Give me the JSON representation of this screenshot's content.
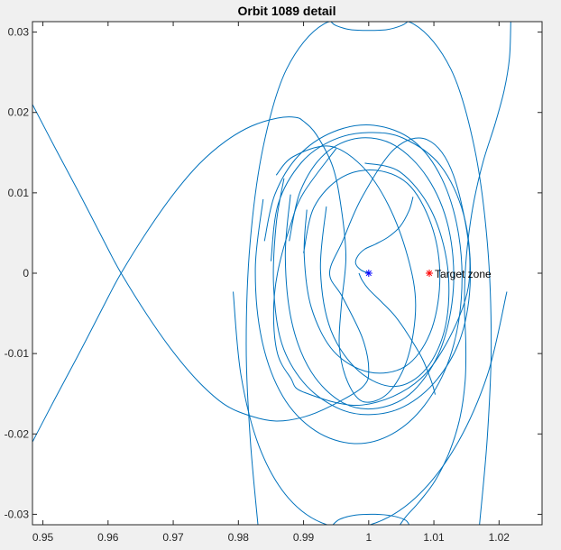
{
  "chart_data": {
    "type": "line",
    "title": "Orbit 1089 detail",
    "xlabel": "",
    "ylabel": "",
    "xlim": [
      0.9484,
      1.0266
    ],
    "ylim": [
      -0.0313,
      0.0313
    ],
    "xticks": [
      0.95,
      0.96,
      0.97,
      0.98,
      0.99,
      1,
      1.01,
      1.02
    ],
    "xtick_labels": [
      "0.95",
      "0.96",
      "0.97",
      "0.98",
      "0.99",
      "1",
      "1.01",
      "1.02"
    ],
    "yticks": [
      -0.03,
      -0.02,
      -0.01,
      0,
      0.01,
      0.02,
      0.03
    ],
    "ytick_labels": [
      "-0.03",
      "-0.02",
      "-0.01",
      "0",
      "0.01",
      "0.02",
      "0.03"
    ],
    "grid": false,
    "line_color": "#0072bd",
    "series": [
      {
        "x": [
          0.9484,
          0.952,
          0.956,
          0.96,
          0.962,
          0.966,
          0.97,
          0.974,
          0.978,
          0.982,
          0.9858,
          0.99,
          0.994,
          0.999,
          1.0,
          0.999,
          0.996,
          0.994,
          0.996,
          0.999,
          1.004,
          1.009,
          1.013,
          1.0155,
          1.014,
          1.008,
          0.999,
          0.99,
          0.988,
          0.986,
          0.9854,
          0.986,
          0.988,
          0.99,
          0.995
        ],
        "y": [
          0.021,
          0.0154,
          0.0093,
          0.003,
          0.0,
          -0.0052,
          -0.0098,
          -0.0136,
          -0.0164,
          -0.0178,
          -0.0184,
          -0.0179,
          -0.0166,
          -0.0142,
          -0.012,
          -0.008,
          -0.003,
          0.0,
          0.004,
          0.0095,
          0.0155,
          0.0166,
          0.0122,
          0.002,
          -0.0052,
          -0.0131,
          -0.0164,
          -0.0148,
          -0.013,
          -0.01,
          -0.005,
          0.0,
          0.006,
          0.01,
          0.0155
        ]
      },
      {
        "x": [
          0.9484,
          0.952,
          0.956,
          0.96,
          0.962,
          0.966,
          0.97,
          0.974,
          0.978,
          0.982,
          0.986,
          0.9887,
          0.99,
          0.992,
          0.9945,
          0.9958,
          0.9965,
          0.9958,
          0.9955,
          0.9968,
          0.9992,
          1.003,
          1.006,
          1.0072,
          1.006,
          1.003,
          0.999,
          0.994,
          0.9884,
          0.9858
        ],
        "y": [
          -0.021,
          -0.0154,
          -0.0093,
          -0.003,
          0.0,
          0.0052,
          0.0098,
          0.0136,
          0.0164,
          0.0183,
          0.0193,
          0.0194,
          0.0189,
          0.0172,
          0.0132,
          0.008,
          0.002,
          -0.004,
          -0.0092,
          -0.0136,
          -0.016,
          -0.0149,
          -0.0105,
          -0.004,
          0.002,
          0.0085,
          0.0133,
          0.0158,
          0.0145,
          0.0122
        ]
      },
      {
        "x": [
          1.0,
          0.9988,
          0.998,
          0.9983,
          0.9994,
          1.001,
          1.003,
          1.0048,
          1.0062,
          1.0068
        ],
        "y": [
          0.0,
          0.0004,
          0.0012,
          0.0021,
          0.003,
          0.0036,
          0.0045,
          0.0058,
          0.0078,
          0.0095
        ]
      },
      {
        "x": [
          0.9985,
          0.999,
          1.0,
          1.002,
          1.004,
          1.006,
          1.0082,
          1.0096,
          1.0102
        ],
        "y": [
          0.0,
          -0.0009,
          -0.002,
          -0.0036,
          -0.0053,
          -0.0076,
          -0.0106,
          -0.0134,
          -0.0151
        ]
      },
      {
        "x": [
          0.983,
          0.9818,
          0.9812,
          0.9818,
          0.9838,
          0.9874,
          0.9931,
          1.0,
          1.0069,
          1.0126,
          1.0162,
          1.0182,
          1.0188,
          1.0182,
          1.017
        ],
        "y": [
          -0.0313,
          -0.0204,
          -0.0088,
          0.0038,
          0.0157,
          0.0254,
          0.031,
          0.0313,
          0.031,
          0.0254,
          0.0157,
          0.0038,
          -0.0088,
          -0.0204,
          -0.0313
        ]
      },
      {
        "x": [
          0.9792,
          0.9804,
          0.9832,
          0.9877,
          0.9936,
          1.0002,
          1.0071,
          1.0133,
          1.0182,
          1.0212
        ],
        "y": [
          -0.0023,
          -0.0127,
          -0.0216,
          -0.028,
          -0.0313,
          -0.0313,
          -0.028,
          -0.0216,
          -0.0127,
          -0.0023
        ]
      },
      {
        "x": [
          0.987,
          0.9858,
          0.9854,
          0.9866,
          0.99,
          0.995,
          1.0,
          1.0054,
          1.0105,
          1.0142,
          1.0156,
          1.0146,
          1.011,
          1.0053,
          1.0,
          0.9946,
          0.9897,
          0.9861,
          0.985
        ],
        "y": [
          0.0118,
          0.0061,
          -0.0015,
          -0.0086,
          -0.0136,
          -0.0167,
          -0.0176,
          -0.0166,
          -0.0132,
          -0.0078,
          -0.0005,
          0.0072,
          0.0134,
          0.0168,
          0.0175,
          0.0166,
          0.0138,
          0.0086,
          0.0015
        ]
      },
      {
        "x": [
          0.9905,
          0.9901,
          0.9912,
          0.9946,
          1.0,
          1.0056,
          1.0094,
          1.0109,
          1.0099,
          1.0064,
          1.0012,
          0.9958,
          0.9916,
          0.99
        ],
        "y": [
          0.0079,
          0.0022,
          -0.0043,
          -0.0097,
          -0.0123,
          -0.0116,
          -0.0075,
          -0.0012,
          0.0053,
          0.0108,
          0.0128,
          0.0119,
          0.0082,
          0.0025
        ]
      },
      {
        "x": [
          0.988,
          0.9872,
          0.9882,
          0.9912,
          0.996,
          1.0014,
          1.0068,
          1.0111,
          1.013,
          1.0122,
          1.009,
          1.004,
          0.9984,
          0.9932,
          0.9895,
          0.9878
        ],
        "y": [
          0.0098,
          0.0021,
          -0.0061,
          -0.0123,
          -0.0161,
          -0.0168,
          -0.0147,
          -0.0093,
          -0.0018,
          0.0058,
          0.0119,
          0.0159,
          0.0168,
          0.0148,
          0.0102,
          0.004
        ]
      },
      {
        "x": [
          0.9935,
          0.9926,
          0.9942,
          0.9985,
          1.004,
          1.0088,
          1.0118,
          1.0121,
          1.0096,
          1.0048,
          0.9994
        ],
        "y": [
          0.0083,
          0.0004,
          -0.0071,
          -0.0122,
          -0.0141,
          -0.0119,
          -0.0065,
          0.0008,
          0.0078,
          0.0126,
          0.0137
        ]
      },
      {
        "x": [
          0.9838,
          0.9826,
          0.9836,
          0.9868,
          0.9918,
          0.9978,
          1.0036,
          1.0086,
          1.0124,
          1.0142,
          1.0138,
          1.0112,
          1.0068,
          1.0008,
          0.9946,
          0.9892,
          0.9856,
          0.984
        ],
        "y": [
          0.0092,
          0.0006,
          -0.0083,
          -0.0153,
          -0.0196,
          -0.0212,
          -0.02,
          -0.0164,
          -0.0106,
          -0.0032,
          0.0048,
          0.0118,
          0.0165,
          0.0184,
          0.0176,
          0.0146,
          0.0098,
          0.004
        ]
      },
      {
        "x": [
          1.0048,
          1.0058,
          1.0078,
          1.0102,
          1.0124,
          1.014,
          1.0148,
          1.0149,
          1.0147,
          1.0148,
          1.0153,
          1.0162,
          1.0176,
          1.0194,
          1.0208,
          1.0216,
          1.0218
        ],
        "y": [
          -0.0313,
          -0.0302,
          -0.0284,
          -0.0258,
          -0.0222,
          -0.018,
          -0.0134,
          -0.0088,
          -0.0045,
          0.0,
          0.0045,
          0.0092,
          0.014,
          0.0186,
          0.0228,
          0.0268,
          0.0313
        ]
      },
      {
        "x": [
          0.9942,
          0.995,
          0.9972,
          1.0,
          1.0028,
          1.005,
          1.006
        ],
        "y": [
          0.0313,
          0.0308,
          0.0303,
          0.0302,
          0.0303,
          0.0308,
          0.0313
        ]
      },
      {
        "x": [
          0.9945,
          0.9956,
          0.998,
          1.001,
          1.0036,
          1.0056,
          1.0062
        ],
        "y": [
          -0.0313,
          -0.0306,
          -0.0301,
          -0.03,
          -0.0302,
          -0.0307,
          -0.0313
        ]
      }
    ],
    "markers": [
      {
        "x": 1.0,
        "y": 0.0,
        "symbol": "*",
        "color": "#0000ff",
        "label": ""
      },
      {
        "x": 1.0093,
        "y": 0.0,
        "symbol": "*",
        "color": "#ff0000",
        "label": "Target zone"
      }
    ]
  }
}
